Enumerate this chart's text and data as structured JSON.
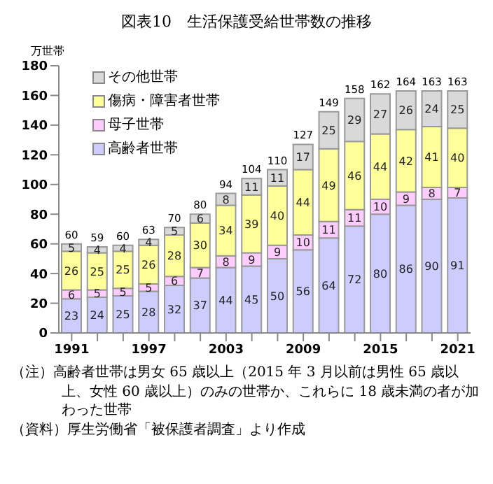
{
  "chart_data": {
    "type": "bar",
    "title": "図表10　生活保護受給世帯数の推移",
    "ylabel": "万世帯",
    "categories": [
      "1991",
      null,
      null,
      "1997",
      null,
      null,
      "2003",
      null,
      null,
      "2009",
      null,
      null,
      "2015",
      null,
      null,
      "2021"
    ],
    "stacked": true,
    "series": [
      {
        "name": "高齢者世帯",
        "color": "#ccccff",
        "values": [
          23,
          24,
          25,
          28,
          32,
          37,
          44,
          45,
          50,
          56,
          64,
          72,
          80,
          86,
          90,
          91
        ]
      },
      {
        "name": "母子世帯",
        "color": "#ffccff",
        "values": [
          6,
          5,
          5,
          5,
          6,
          7,
          8,
          9,
          9,
          10,
          11,
          11,
          10,
          9,
          8,
          7
        ]
      },
      {
        "name": "傷病・障害者世帯",
        "color": "#ffff99",
        "values": [
          26,
          25,
          25,
          26,
          28,
          30,
          34,
          39,
          40,
          44,
          49,
          46,
          44,
          42,
          41,
          40
        ]
      },
      {
        "name": "その他世帯",
        "color": "#d9d9d9",
        "values": [
          5,
          4,
          4,
          4,
          5,
          6,
          8,
          11,
          11,
          17,
          25,
          29,
          27,
          26,
          24,
          25
        ]
      }
    ],
    "totals": [
      "60",
      "59",
      "60",
      "63",
      "70",
      "80",
      "94",
      "104",
      "110",
      "127",
      "149",
      "158",
      "162",
      "164",
      "163",
      "163"
    ],
    "data_labels": true,
    "ylim": [
      0,
      180
    ],
    "yticks": [
      0,
      20,
      40,
      60,
      80,
      100,
      120,
      140,
      160,
      180
    ],
    "grid": false,
    "legend": "top left",
    "annotations": [
      "（注）高齢者世帯は男女 65 歳以上（2015 年 3 月以前は男性 65 歳以上、女性 60 歳以上）のみの世帯か、これらに 18 歳未満の者が加わった世帯",
      "（資料）厚生労働省「被保護者調査」より作成"
    ]
  }
}
